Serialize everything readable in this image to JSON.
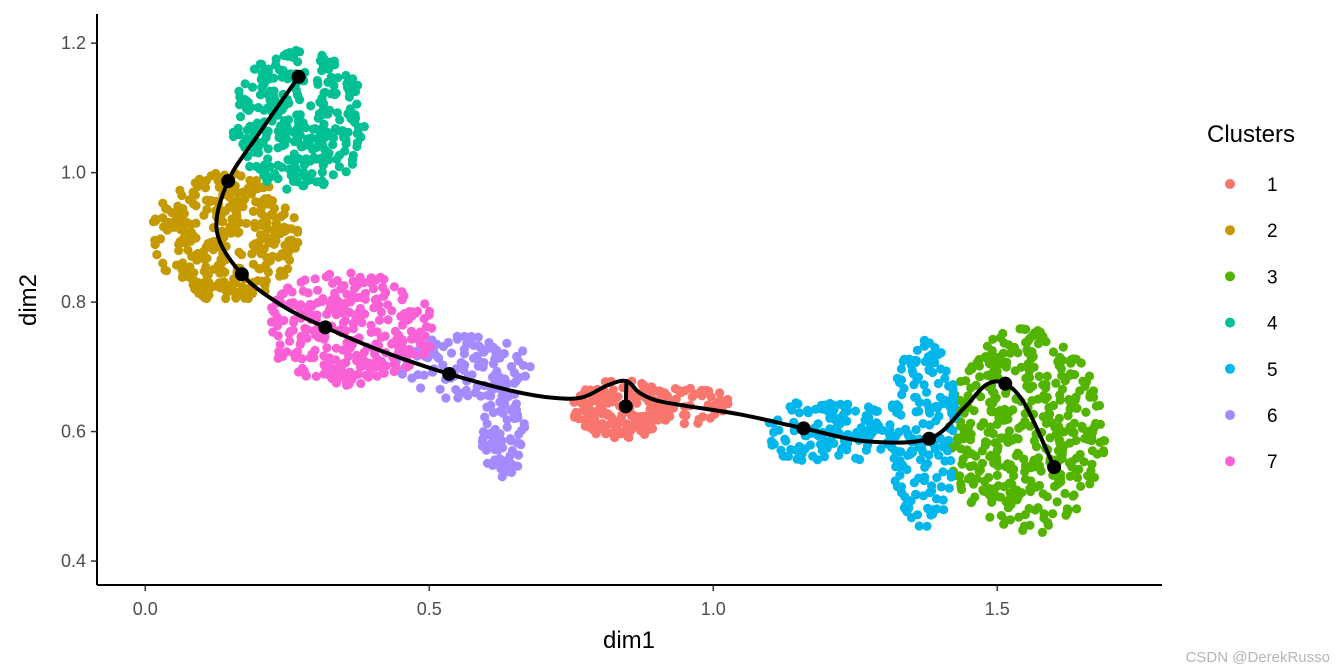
{
  "chart_data": {
    "type": "scatter",
    "xlabel": "dim1",
    "ylabel": "dim2",
    "xlim": [
      -0.085,
      1.79
    ],
    "ylim": [
      0.363,
      1.245
    ],
    "x_ticks": [
      0.0,
      0.5,
      1.0,
      1.5
    ],
    "x_tick_labels": [
      "0.0",
      "0.5",
      "1.0",
      "1.5"
    ],
    "y_ticks": [
      0.4,
      0.6,
      0.8,
      1.0,
      1.2
    ],
    "y_tick_labels": [
      "0.4",
      "0.6",
      "0.8",
      "1.0",
      "1.2"
    ],
    "grid": false,
    "legend": {
      "title": "Clusters",
      "placement": "right",
      "entries": [
        "1",
        "2",
        "3",
        "4",
        "5",
        "6",
        "7"
      ]
    },
    "series": [
      {
        "name": "1",
        "color": "#F8766D",
        "clusters": [
          {
            "cx": 0.84,
            "cy": 0.635,
            "rx": 0.09,
            "ry": 0.045,
            "n": 170
          },
          {
            "cx": 0.96,
            "cy": 0.64,
            "rx": 0.07,
            "ry": 0.03,
            "n": 50
          }
        ]
      },
      {
        "name": "2",
        "color": "#C49A00",
        "clusters": [
          {
            "cx": 0.14,
            "cy": 0.9,
            "rx": 0.13,
            "ry": 0.1,
            "n": 330
          }
        ]
      },
      {
        "name": "3",
        "color": "#53B400",
        "clusters": [
          {
            "cx": 1.55,
            "cy": 0.6,
            "rx": 0.14,
            "ry": 0.16,
            "n": 420
          }
        ]
      },
      {
        "name": "4",
        "color": "#00C094",
        "clusters": [
          {
            "cx": 0.27,
            "cy": 1.08,
            "rx": 0.12,
            "ry": 0.11,
            "n": 300
          }
        ]
      },
      {
        "name": "5",
        "color": "#00B6EB",
        "clusters": [
          {
            "cx": 1.2,
            "cy": 0.6,
            "rx": 0.12,
            "ry": 0.05,
            "n": 130
          },
          {
            "cx": 1.37,
            "cy": 0.6,
            "rx": 0.06,
            "ry": 0.15,
            "n": 170
          }
        ]
      },
      {
        "name": "6",
        "color": "#A58AFF",
        "clusters": [
          {
            "cx": 0.56,
            "cy": 0.7,
            "rx": 0.12,
            "ry": 0.05,
            "n": 110
          },
          {
            "cx": 0.63,
            "cy": 0.6,
            "rx": 0.04,
            "ry": 0.07,
            "n": 80
          }
        ]
      },
      {
        "name": "7",
        "color": "#FB61D7",
        "clusters": [
          {
            "cx": 0.36,
            "cy": 0.76,
            "rx": 0.15,
            "ry": 0.09,
            "n": 300
          }
        ]
      }
    ],
    "trajectory": {
      "color": "#000000",
      "nodes": [
        {
          "x": 0.27,
          "y": 1.148
        },
        {
          "x": 0.146,
          "y": 0.987
        },
        {
          "x": 0.17,
          "y": 0.843
        },
        {
          "x": 0.317,
          "y": 0.761
        },
        {
          "x": 0.535,
          "y": 0.689
        },
        {
          "x": 0.846,
          "y": 0.639
        },
        {
          "x": 1.159,
          "y": 0.605
        },
        {
          "x": 1.38,
          "y": 0.589
        },
        {
          "x": 1.514,
          "y": 0.674
        },
        {
          "x": 1.6,
          "y": 0.545
        }
      ],
      "path": [
        [
          0.27,
          1.148
        ],
        [
          0.2,
          1.06
        ],
        [
          0.146,
          0.987
        ],
        [
          0.126,
          0.91
        ],
        [
          0.17,
          0.843
        ],
        [
          0.24,
          0.795
        ],
        [
          0.317,
          0.761
        ],
        [
          0.42,
          0.723
        ],
        [
          0.535,
          0.689
        ],
        [
          0.65,
          0.662
        ],
        [
          0.72,
          0.652
        ],
        [
          0.77,
          0.653
        ],
        [
          0.815,
          0.672
        ],
        [
          0.847,
          0.678
        ],
        [
          0.87,
          0.66
        ],
        [
          0.9,
          0.648
        ],
        [
          0.95,
          0.64
        ],
        [
          1.05,
          0.626
        ],
        [
          1.159,
          0.605
        ],
        [
          1.27,
          0.585
        ],
        [
          1.38,
          0.589
        ],
        [
          1.44,
          0.635
        ],
        [
          1.48,
          0.672
        ],
        [
          1.514,
          0.674
        ],
        [
          1.55,
          0.64
        ],
        [
          1.6,
          0.545
        ]
      ],
      "branch": [
        [
          0.846,
          0.639
        ],
        [
          0.847,
          0.678
        ]
      ]
    }
  },
  "watermark": "CSDN @DerekRusso"
}
